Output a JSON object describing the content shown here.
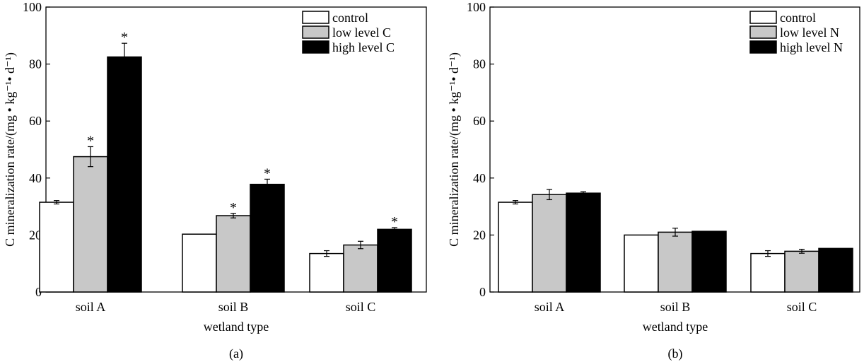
{
  "chart_data": [
    {
      "type": "bar",
      "panel_label": "(a)",
      "title": "",
      "xlabel": "wetland type",
      "ylabel": "C mineralization rate/(mg • kg⁻¹• d⁻¹)",
      "ylim": [
        0,
        100
      ],
      "yticks": [
        0,
        20,
        40,
        60,
        80,
        100
      ],
      "categories": [
        "soil A",
        "soil B",
        "soil C"
      ],
      "legend_position": "top-right",
      "series": [
        {
          "name": "control",
          "color": "#ffffff",
          "values": [
            31.5,
            20.3,
            13.5
          ],
          "errors": [
            0.6,
            0,
            1.0
          ],
          "significant": [
            false,
            false,
            false
          ]
        },
        {
          "name": "low level C",
          "color": "#c8c8c8",
          "values": [
            47.5,
            26.8,
            16.5
          ],
          "errors": [
            3.5,
            0.8,
            1.3
          ],
          "significant": [
            true,
            true,
            false
          ]
        },
        {
          "name": "high level C",
          "color": "#000000",
          "values": [
            82.5,
            37.8,
            22.0
          ],
          "errors": [
            4.8,
            1.8,
            0.6
          ],
          "significant": [
            true,
            true,
            true
          ]
        }
      ],
      "significance_marker": "*"
    },
    {
      "type": "bar",
      "panel_label": "(b)",
      "title": "",
      "xlabel": "wetland type",
      "ylabel": "C mineralization rate/(mg • kg⁻¹• d⁻¹)",
      "ylim": [
        0,
        100
      ],
      "yticks": [
        0,
        20,
        40,
        60,
        80,
        100
      ],
      "categories": [
        "soil A",
        "soil B",
        "soil C"
      ],
      "legend_position": "top-right",
      "series": [
        {
          "name": "control",
          "color": "#ffffff",
          "values": [
            31.5,
            20.0,
            13.5
          ],
          "errors": [
            0.6,
            0,
            1.0
          ],
          "significant": [
            false,
            false,
            false
          ]
        },
        {
          "name": "low level N",
          "color": "#c8c8c8",
          "values": [
            34.2,
            21.0,
            14.3
          ],
          "errors": [
            1.8,
            1.4,
            0.7
          ],
          "significant": [
            false,
            false,
            false
          ]
        },
        {
          "name": "high level N",
          "color": "#000000",
          "values": [
            34.7,
            21.3,
            15.3
          ],
          "errors": [
            0.5,
            0,
            0
          ],
          "significant": [
            false,
            false,
            false
          ]
        }
      ],
      "significance_marker": "*"
    }
  ]
}
